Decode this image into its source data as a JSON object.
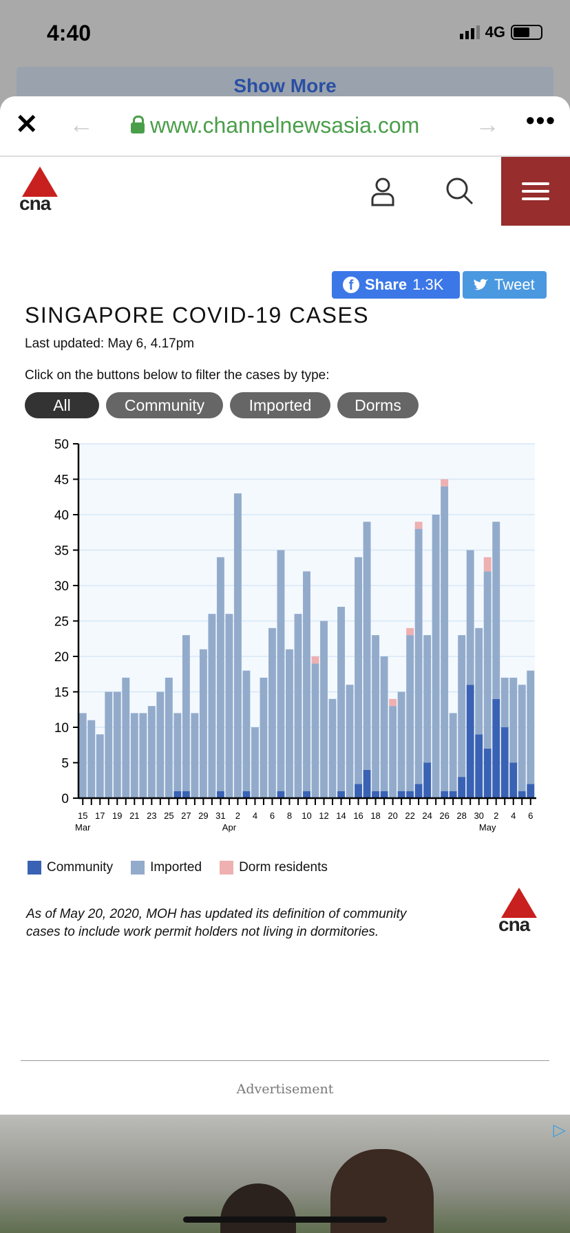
{
  "status": {
    "time": "4:40",
    "network": "4G"
  },
  "banner": {
    "text": "Show More"
  },
  "browser": {
    "url": "www.channelnewsasia.com",
    "close": "✕",
    "back": "←",
    "forward": "→",
    "more": "•••"
  },
  "site": {
    "logo": "cna"
  },
  "share": {
    "facebook_label": "Share",
    "facebook_count": "1.3K",
    "tweet_label": "Tweet"
  },
  "article": {
    "title": "SINGAPORE COVID-19 CASES",
    "updated": "Last updated: May 6, 4.17pm",
    "filter_prompt": "Click on the buttons below to filter the cases by type:",
    "filters": [
      "All",
      "Community",
      "Imported",
      "Dorms"
    ],
    "active_filter": "All",
    "note": "As of May 20, 2020, MOH has updated its definition of community cases to include work permit holders not living in dormitories."
  },
  "ad": {
    "label": "Advertisement"
  },
  "chart_data": {
    "type": "bar",
    "stacked": true,
    "colors": {
      "Community": "#3a62b4",
      "Imported": "#93abcb",
      "Dorm residents": "#eeb0b0"
    },
    "ylim": [
      0,
      50
    ],
    "yticks": [
      0,
      5,
      10,
      15,
      20,
      25,
      30,
      35,
      40,
      45,
      50
    ],
    "x": [
      "Mar 15",
      "Mar 16",
      "Mar 17",
      "Mar 18",
      "Mar 19",
      "Mar 20",
      "Mar 21",
      "Mar 22",
      "Mar 23",
      "Mar 24",
      "Mar 25",
      "Mar 26",
      "Mar 27",
      "Mar 28",
      "Mar 29",
      "Mar 30",
      "Mar 31",
      "Apr 1",
      "Apr 2",
      "Apr 3",
      "Apr 4",
      "Apr 5",
      "Apr 6",
      "Apr 7",
      "Apr 8",
      "Apr 9",
      "Apr 10",
      "Apr 11",
      "Apr 12",
      "Apr 13",
      "Apr 14",
      "Apr 15",
      "Apr 16",
      "Apr 17",
      "Apr 18",
      "Apr 19",
      "Apr 20",
      "Apr 21",
      "Apr 22",
      "Apr 23",
      "Apr 24",
      "Apr 25",
      "Apr 26",
      "Apr 27",
      "Apr 28",
      "Apr 29",
      "Apr 30",
      "May 1",
      "May 2",
      "May 3",
      "May 4",
      "May 5",
      "May 6"
    ],
    "tick_labels": [
      "15",
      "17",
      "19",
      "21",
      "23",
      "25",
      "27",
      "29",
      "31",
      "2",
      "4",
      "6",
      "8",
      "10",
      "12",
      "14",
      "16",
      "18",
      "20",
      "22",
      "24",
      "26",
      "28",
      "30",
      "2",
      "4",
      "6"
    ],
    "month_labels": [
      "Mar",
      "Apr",
      "May"
    ],
    "series": [
      {
        "name": "Community",
        "values": [
          0,
          0,
          0,
          0,
          0,
          0,
          0,
          0,
          0,
          0,
          0,
          1,
          1,
          0,
          0,
          0,
          1,
          0,
          0,
          1,
          0,
          0,
          0,
          1,
          0,
          0,
          1,
          0,
          0,
          0,
          1,
          0,
          2,
          4,
          1,
          1,
          0,
          1,
          1,
          2,
          5,
          0,
          1,
          1,
          3,
          16,
          9,
          7,
          14,
          10,
          5,
          1,
          2
        ]
      },
      {
        "name": "Imported",
        "values": [
          12,
          11,
          9,
          15,
          15,
          17,
          12,
          12,
          13,
          15,
          17,
          11,
          22,
          12,
          21,
          26,
          33,
          26,
          43,
          17,
          10,
          17,
          24,
          34,
          21,
          26,
          31,
          19,
          25,
          14,
          26,
          16,
          32,
          35,
          22,
          19,
          13,
          14,
          22,
          36,
          18,
          40,
          43,
          11,
          20,
          19,
          15,
          25,
          25,
          7,
          12,
          15,
          16
        ]
      },
      {
        "name": "Dorm residents",
        "values": [
          0,
          0,
          0,
          0,
          0,
          0,
          0,
          0,
          0,
          0,
          0,
          0,
          0,
          0,
          0,
          0,
          0,
          0,
          0,
          0,
          0,
          0,
          0,
          0,
          0,
          0,
          0,
          1,
          0,
          0,
          0,
          0,
          0,
          0,
          0,
          0,
          1,
          0,
          1,
          1,
          0,
          0,
          1,
          0,
          0,
          0,
          0,
          2,
          0,
          0,
          0,
          0,
          0
        ]
      }
    ],
    "legend": [
      "Community",
      "Imported",
      "Dorm residents"
    ],
    "legend_position": "bottom-left"
  }
}
